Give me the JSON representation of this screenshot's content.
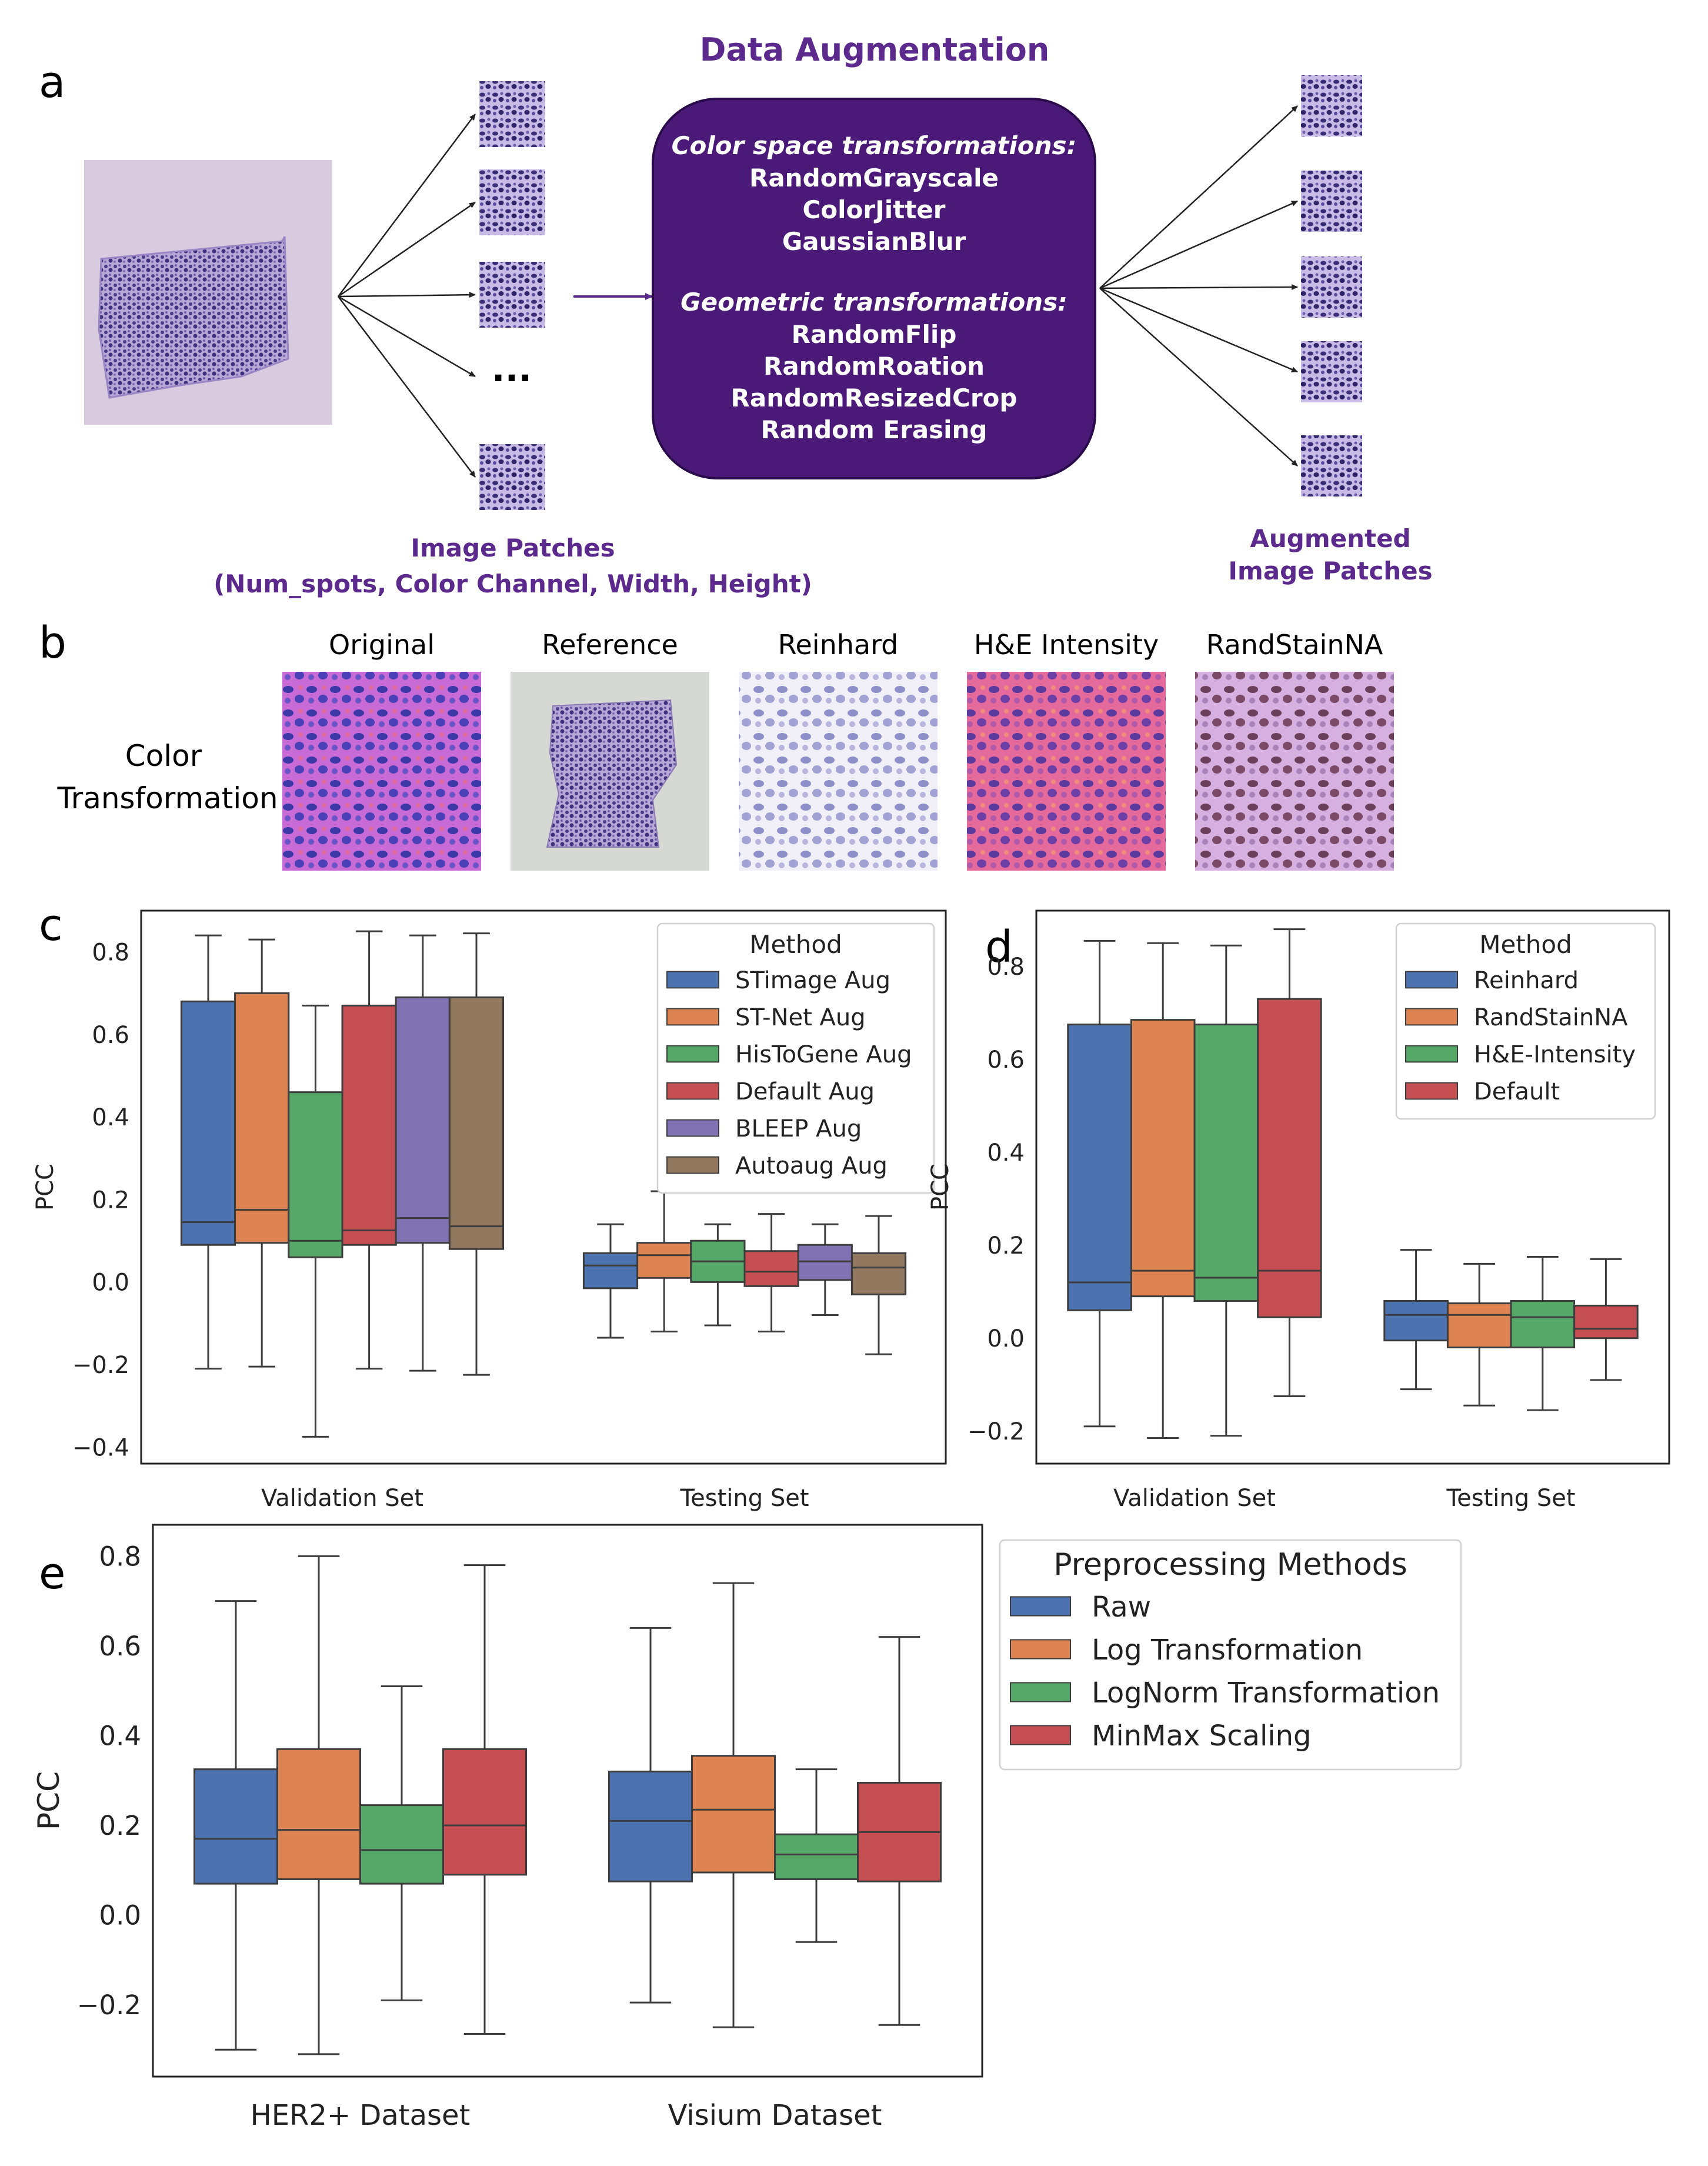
{
  "panel_labels": {
    "a": "a",
    "b": "b",
    "c": "c",
    "d": "d",
    "e": "e"
  },
  "panel_a": {
    "title": "Data Augmentation",
    "color_heading": "Color space transformations:",
    "color_items": [
      "RandomGrayscale",
      "ColorJitter",
      "GaussianBlur"
    ],
    "geo_heading": "Geometric transformations:",
    "geo_items": [
      "RandomFlip",
      "RandomRoation",
      "RandomResizedCrop",
      "Random Erasing"
    ],
    "ellipsis": "...",
    "patches_label": "Image Patches",
    "patches_shape": "(Num_spots, Color Channel, Width, Height)",
    "aug_label_1": "Augmented",
    "aug_label_2": "Image Patches",
    "box_color": "#4b1a78",
    "text_color": "#5b2a8c"
  },
  "panel_b": {
    "row_label_1": "Color",
    "row_label_2": "Transformation",
    "columns": [
      "Original",
      "Reference",
      "Reinhard",
      "H&E Intensity",
      "RandStainNA"
    ]
  },
  "chart_data": [
    {
      "type": "box",
      "panel": "c",
      "ylabel": "PCC",
      "ylim": [
        -0.44,
        0.9
      ],
      "yticks": [
        -0.4,
        -0.2,
        0.0,
        0.2,
        0.4,
        0.6,
        0.8
      ],
      "ytick_labels": [
        "−0.4",
        "−0.2",
        "0.0",
        "0.2",
        "0.4",
        "0.6",
        "0.8"
      ],
      "categories": [
        "Validation Set",
        "Testing Set"
      ],
      "legend_title": "Method",
      "legend_position": "top-right",
      "series": [
        {
          "name": "STimage Aug",
          "color": "#4c72b0",
          "boxes": [
            {
              "whislo": -0.21,
              "q1": 0.09,
              "med": 0.145,
              "q3": 0.68,
              "whishi": 0.84
            },
            {
              "whislo": -0.135,
              "q1": -0.015,
              "med": 0.04,
              "q3": 0.07,
              "whishi": 0.14
            }
          ]
        },
        {
          "name": "ST-Net Aug",
          "color": "#dd8452",
          "boxes": [
            {
              "whislo": -0.205,
              "q1": 0.095,
              "med": 0.175,
              "q3": 0.7,
              "whishi": 0.83
            },
            {
              "whislo": -0.12,
              "q1": 0.01,
              "med": 0.065,
              "q3": 0.095,
              "whishi": 0.22
            }
          ]
        },
        {
          "name": "HisToGene Aug",
          "color": "#55a868",
          "boxes": [
            {
              "whislo": -0.375,
              "q1": 0.06,
              "med": 0.1,
              "q3": 0.46,
              "whishi": 0.67
            },
            {
              "whislo": -0.105,
              "q1": 0.0,
              "med": 0.05,
              "q3": 0.1,
              "whishi": 0.14
            }
          ]
        },
        {
          "name": "Default Aug",
          "color": "#c44e52",
          "boxes": [
            {
              "whislo": -0.21,
              "q1": 0.09,
              "med": 0.125,
              "q3": 0.67,
              "whishi": 0.85
            },
            {
              "whislo": -0.12,
              "q1": -0.01,
              "med": 0.025,
              "q3": 0.075,
              "whishi": 0.165
            }
          ]
        },
        {
          "name": "BLEEP Aug",
          "color": "#8172b3",
          "boxes": [
            {
              "whislo": -0.215,
              "q1": 0.095,
              "med": 0.155,
              "q3": 0.69,
              "whishi": 0.84
            },
            {
              "whislo": -0.08,
              "q1": 0.005,
              "med": 0.05,
              "q3": 0.09,
              "whishi": 0.14
            }
          ]
        },
        {
          "name": "Autoaug Aug",
          "color": "#937860",
          "boxes": [
            {
              "whislo": -0.225,
              "q1": 0.08,
              "med": 0.135,
              "q3": 0.69,
              "whishi": 0.845
            },
            {
              "whislo": -0.175,
              "q1": -0.03,
              "med": 0.035,
              "q3": 0.07,
              "whishi": 0.16
            }
          ]
        }
      ]
    },
    {
      "type": "box",
      "panel": "d",
      "ylabel": "PCC",
      "ylim": [
        -0.27,
        0.92
      ],
      "yticks": [
        -0.2,
        0.0,
        0.2,
        0.4,
        0.6,
        0.8
      ],
      "ytick_labels": [
        "−0.2",
        "0.0",
        "0.2",
        "0.4",
        "0.6",
        "0.8"
      ],
      "categories": [
        "Validation Set",
        "Testing Set"
      ],
      "legend_title": "Method",
      "legend_position": "top-right",
      "series": [
        {
          "name": "Reinhard",
          "color": "#4c72b0",
          "boxes": [
            {
              "whislo": -0.19,
              "q1": 0.06,
              "med": 0.12,
              "q3": 0.675,
              "whishi": 0.855
            },
            {
              "whislo": -0.11,
              "q1": -0.005,
              "med": 0.05,
              "q3": 0.08,
              "whishi": 0.19
            }
          ]
        },
        {
          "name": "RandStainNA",
          "color": "#dd8452",
          "boxes": [
            {
              "whislo": -0.215,
              "q1": 0.09,
              "med": 0.145,
              "q3": 0.685,
              "whishi": 0.85
            },
            {
              "whislo": -0.145,
              "q1": -0.02,
              "med": 0.05,
              "q3": 0.075,
              "whishi": 0.16
            }
          ]
        },
        {
          "name": "H&E-Intensity",
          "color": "#55a868",
          "boxes": [
            {
              "whislo": -0.21,
              "q1": 0.08,
              "med": 0.13,
              "q3": 0.675,
              "whishi": 0.845
            },
            {
              "whislo": -0.155,
              "q1": -0.02,
              "med": 0.045,
              "q3": 0.08,
              "whishi": 0.175
            }
          ]
        },
        {
          "name": "Default",
          "color": "#c44e52",
          "boxes": [
            {
              "whislo": -0.125,
              "q1": 0.045,
              "med": 0.145,
              "q3": 0.73,
              "whishi": 0.88
            },
            {
              "whislo": -0.09,
              "q1": 0.0,
              "med": 0.02,
              "q3": 0.07,
              "whishi": 0.17
            }
          ]
        }
      ]
    },
    {
      "type": "box",
      "panel": "e",
      "ylabel": "PCC",
      "ylim": [
        -0.36,
        0.87
      ],
      "yticks": [
        -0.2,
        0.0,
        0.2,
        0.4,
        0.6,
        0.8
      ],
      "ytick_labels": [
        "−0.2",
        "0.0",
        "0.2",
        "0.4",
        "0.6",
        "0.8"
      ],
      "categories": [
        "HER2+ Dataset",
        "Visium Dataset"
      ],
      "legend_title": "Preprocessing Methods",
      "legend_position": "outside-right",
      "series": [
        {
          "name": "Raw",
          "color": "#4c72b0",
          "boxes": [
            {
              "whislo": -0.3,
              "q1": 0.07,
              "med": 0.17,
              "q3": 0.325,
              "whishi": 0.7
            },
            {
              "whislo": -0.195,
              "q1": 0.075,
              "med": 0.21,
              "q3": 0.32,
              "whishi": 0.64
            }
          ]
        },
        {
          "name": "Log Transformation",
          "color": "#dd8452",
          "boxes": [
            {
              "whislo": -0.31,
              "q1": 0.08,
              "med": 0.19,
              "q3": 0.37,
              "whishi": 0.8
            },
            {
              "whislo": -0.25,
              "q1": 0.095,
              "med": 0.235,
              "q3": 0.355,
              "whishi": 0.74
            }
          ]
        },
        {
          "name": "LogNorm Transformation",
          "color": "#55a868",
          "boxes": [
            {
              "whislo": -0.19,
              "q1": 0.07,
              "med": 0.145,
              "q3": 0.245,
              "whishi": 0.51
            },
            {
              "whislo": -0.06,
              "q1": 0.08,
              "med": 0.135,
              "q3": 0.18,
              "whishi": 0.325
            }
          ]
        },
        {
          "name": "MinMax Scaling",
          "color": "#c44e52",
          "boxes": [
            {
              "whislo": -0.265,
              "q1": 0.09,
              "med": 0.2,
              "q3": 0.37,
              "whishi": 0.78
            },
            {
              "whislo": -0.245,
              "q1": 0.075,
              "med": 0.185,
              "q3": 0.295,
              "whishi": 0.62
            }
          ]
        }
      ]
    }
  ]
}
